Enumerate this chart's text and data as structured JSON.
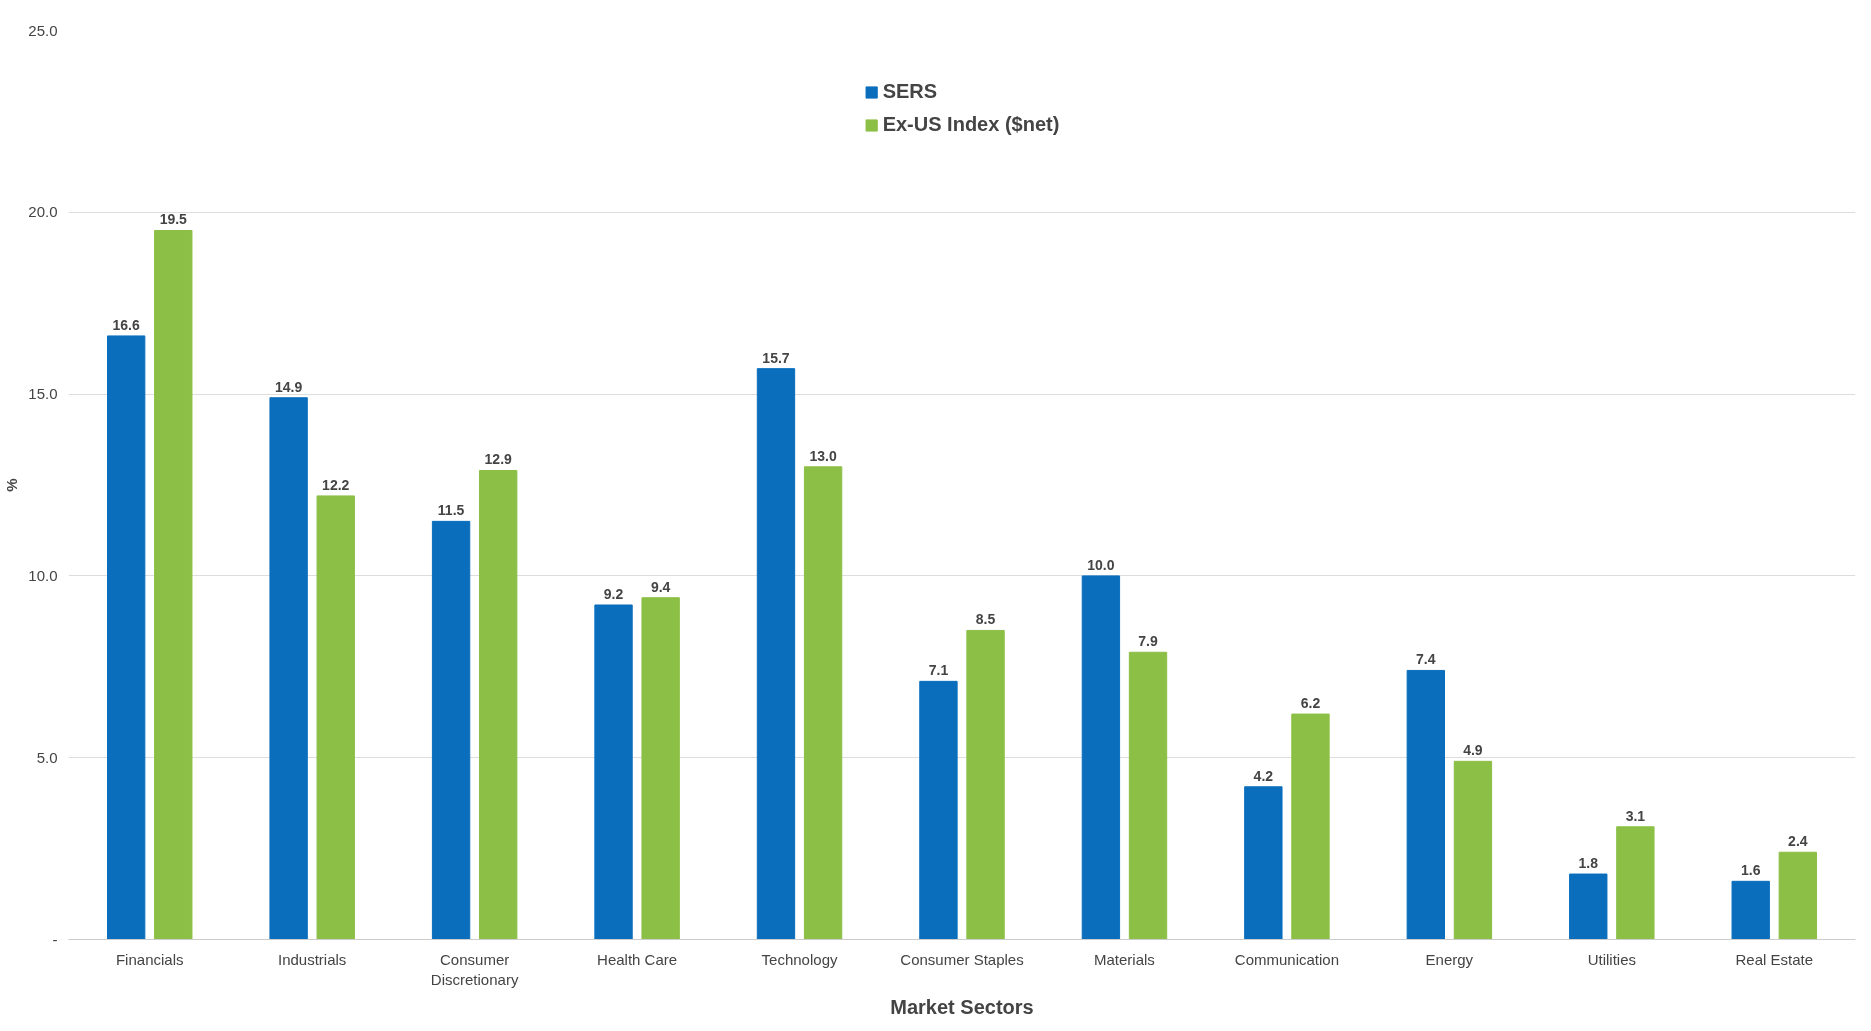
{
  "chart_data": {
    "type": "bar",
    "xlabel": "Market Sectors",
    "ylabel": "%",
    "categories": [
      "Financials",
      "Industrials",
      "Consumer Discretionary",
      "Health Care",
      "Technology",
      "Consumer Staples",
      "Materials",
      "Communication",
      "Energy",
      "Utilities",
      "Real Estate"
    ],
    "series": [
      {
        "name": "SERS",
        "color": "#0a6ebd",
        "values": [
          16.6,
          14.9,
          11.5,
          9.2,
          15.7,
          7.1,
          10.0,
          4.2,
          7.4,
          1.8,
          1.6
        ],
        "value_labels": [
          "16.6",
          "14.9",
          "11.5",
          "9.2",
          "15.7",
          "7.1",
          "10.0",
          "4.2",
          "7.4",
          "1.8",
          "1.6"
        ]
      },
      {
        "name": "Ex-US Index ($net)",
        "color": "#8cbf45",
        "values": [
          19.5,
          12.2,
          12.9,
          9.4,
          13.0,
          8.5,
          7.9,
          6.2,
          4.9,
          3.1,
          2.4
        ],
        "value_labels": [
          "19.5",
          "12.2",
          "12.9",
          "9.4",
          "13.0",
          "8.5",
          "7.9",
          "6.2",
          "4.9",
          "3.1",
          "2.4"
        ]
      }
    ],
    "ylim": [
      0,
      25
    ],
    "yticks": [
      {
        "value": 0,
        "label": "-"
      },
      {
        "value": 5,
        "label": "5.0"
      },
      {
        "value": 10,
        "label": "10.0"
      },
      {
        "value": 15,
        "label": "15.0"
      },
      {
        "value": 20,
        "label": "20.0"
      },
      {
        "value": 25,
        "label": "25.0"
      }
    ],
    "grid": "y",
    "legend": "top"
  }
}
